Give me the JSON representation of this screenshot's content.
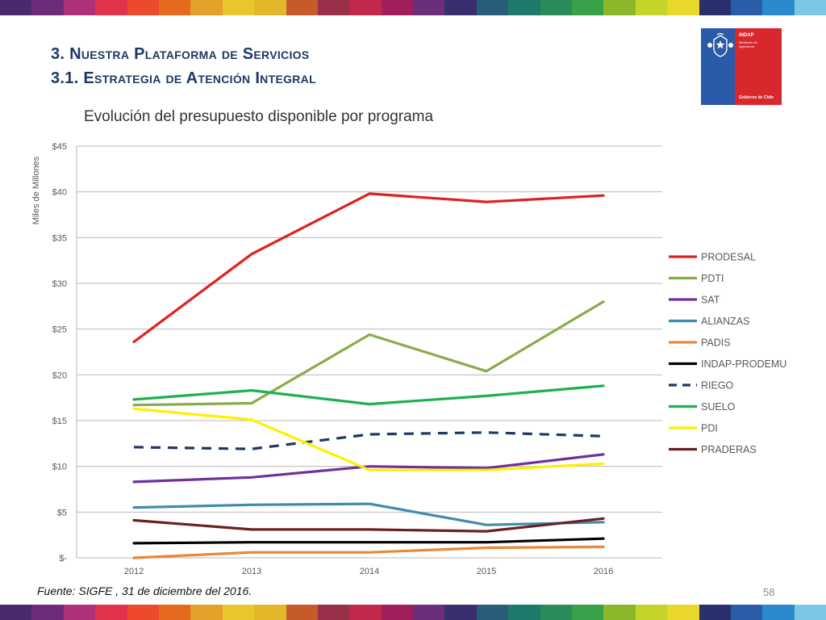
{
  "slide": {
    "title_line1": "3. Nuestra Plataforma de Servicios",
    "title_line2": "3.1. Estrategia de Atención Integral",
    "source": "Fuente: SIGFE , 31 de diciembre del 2016.",
    "page_number": "58"
  },
  "logo": {
    "name": "INDAP",
    "subtitle": "Ministerio de Agricultura",
    "government": "Gobierno de Chile",
    "colors": {
      "blue": "#2a5ba8",
      "red": "#d9272e"
    }
  },
  "stripe_colors": [
    "#4b2a6b",
    "#6b2c7a",
    "#b0307a",
    "#e0344e",
    "#ec4a2a",
    "#e66a1e",
    "#e3a12a",
    "#e9c72c",
    "#e2b82a",
    "#c75a2a",
    "#9a2f4a",
    "#c2284c",
    "#a01f5a",
    "#6b2f7a",
    "#3a2f6e",
    "#2a5c7a",
    "#1e7a6a",
    "#2a8a5a",
    "#3aa04a",
    "#8ab82a",
    "#c4d42a",
    "#e9d82a",
    "#2a2f6e",
    "#2a5ca8",
    "#2a8acc",
    "#7ac8e4"
  ],
  "chart_data": {
    "type": "line",
    "title": "Evolución del presupuesto disponible por programa",
    "xlabel": "",
    "ylabel": "Miles de Millones",
    "x": [
      "2012",
      "2013",
      "2014",
      "2015",
      "2016"
    ],
    "ylim": [
      0,
      45
    ],
    "yticks": [
      0,
      5,
      10,
      15,
      20,
      25,
      30,
      35,
      40,
      45
    ],
    "ytick_labels": [
      "$-",
      "$5",
      "$10",
      "$15",
      "$20",
      "$25",
      "$30",
      "$35",
      "$40",
      "$45"
    ],
    "grid": true,
    "legend_position": "right",
    "series": [
      {
        "name": "PRODESAL",
        "color": "#e02020",
        "dashed": false,
        "values": [
          23.6,
          33.2,
          39.8,
          38.9,
          39.6
        ]
      },
      {
        "name": "PDTI",
        "color": "#8aab4a",
        "dashed": false,
        "values": [
          16.7,
          16.9,
          24.4,
          20.4,
          28.0
        ]
      },
      {
        "name": "SAT",
        "color": "#7030a0",
        "dashed": false,
        "values": [
          8.3,
          8.8,
          10.0,
          9.8,
          11.3
        ]
      },
      {
        "name": "ALIANZAS",
        "color": "#3d8cb0",
        "dashed": false,
        "values": [
          5.5,
          5.8,
          5.9,
          3.6,
          3.9
        ]
      },
      {
        "name": "PADIS",
        "color": "#e8883a",
        "dashed": false,
        "values": [
          0.0,
          0.6,
          0.6,
          1.1,
          1.2
        ]
      },
      {
        "name": "INDAP-PRODEMU",
        "color": "#000000",
        "dashed": false,
        "values": [
          1.6,
          1.7,
          1.7,
          1.7,
          2.1
        ]
      },
      {
        "name": "RIEGO",
        "color": "#1f3864",
        "dashed": true,
        "values": [
          12.1,
          11.9,
          13.5,
          13.7,
          13.3
        ]
      },
      {
        "name": "SUELO",
        "color": "#1db050",
        "dashed": false,
        "values": [
          17.3,
          18.3,
          16.8,
          17.7,
          18.8
        ]
      },
      {
        "name": "PDI",
        "color": "#ffef00",
        "dashed": false,
        "values": [
          16.3,
          15.1,
          9.6,
          9.6,
          10.3
        ]
      },
      {
        "name": "PRADERAS",
        "color": "#6b2020",
        "dashed": false,
        "values": [
          4.1,
          3.1,
          3.1,
          2.9,
          4.3
        ]
      }
    ]
  }
}
